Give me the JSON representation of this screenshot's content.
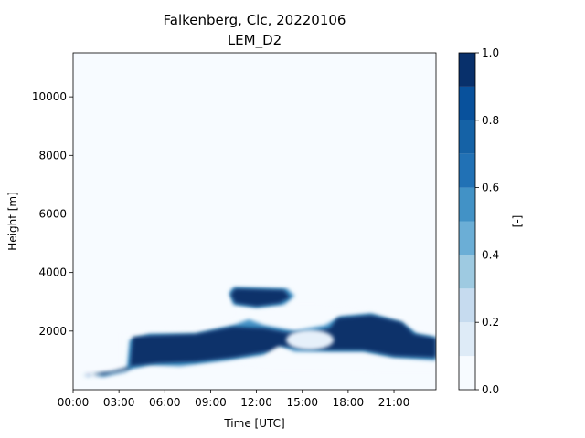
{
  "chart_data": {
    "type": "heatmap",
    "title": "Falkenberg, Clc, 20220106",
    "subtitle": "LEM_D2",
    "xlabel": "Time [UTC]",
    "ylabel": "Height [m]",
    "xlim": [
      0,
      23.75
    ],
    "ylim": [
      0,
      11500
    ],
    "x_ticks": [
      0,
      3,
      6,
      9,
      12,
      15,
      18,
      21
    ],
    "x_tick_labels": [
      "00:00",
      "03:00",
      "06:00",
      "09:00",
      "12:00",
      "15:00",
      "18:00",
      "21:00"
    ],
    "y_ticks": [
      2000,
      4000,
      6000,
      8000,
      10000
    ],
    "y_tick_labels": [
      "2000",
      "4000",
      "6000",
      "8000",
      "10000"
    ],
    "colorbar": {
      "label": "[-]",
      "range": [
        0,
        1
      ],
      "levels": [
        0.0,
        0.1,
        0.2,
        0.3,
        0.4,
        0.5,
        0.6,
        0.7,
        0.8,
        0.9,
        1.0
      ],
      "ticks": [
        0.0,
        0.2,
        0.4,
        0.6,
        0.8,
        1.0
      ],
      "tick_labels": [
        "0.0",
        "0.2",
        "0.4",
        "0.6",
        "0.8",
        "1.0"
      ],
      "colors": [
        "#f7fbff",
        "#deebf7",
        "#c6dbef",
        "#9ecae1",
        "#6baed6",
        "#4292c6",
        "#2171b5",
        "#1562a6",
        "#08519c",
        "#08306b"
      ],
      "colormap": "Blues"
    },
    "series": [
      {
        "level": 0.05,
        "regions": [
          {
            "description_label": "",
            "outline": [
              [
                0.5,
                300
              ],
              [
                2.0,
                350
              ],
              [
                3.0,
                500
              ],
              [
                3.0,
                2000
              ],
              [
                9.0,
                2200
              ],
              [
                10.5,
                2600
              ],
              [
                10.2,
                3200
              ],
              [
                10.5,
                3500
              ],
              [
                14.0,
                3400
              ],
              [
                14.5,
                3000
              ],
              [
                16.0,
                3000
              ],
              [
                18.0,
                2900
              ],
              [
                20.5,
                2700
              ],
              [
                22.5,
                2200
              ],
              [
                23.75,
                2000
              ],
              [
                23.75,
                500
              ],
              [
                20.0,
                500
              ],
              [
                16.0,
                600
              ],
              [
                13.0,
                600
              ],
              [
                10.0,
                800
              ],
              [
                6.0,
                900
              ],
              [
                3.0,
                500
              ],
              [
                0.5,
                500
              ]
            ]
          }
        ]
      },
      {
        "level": 0.55,
        "regions": [
          {
            "outline": [
              [
                0.6,
                500
              ],
              [
                2.0,
                450
              ],
              [
                3.5,
                600
              ],
              [
                3.7,
                1700
              ],
              [
                5.0,
                1900
              ],
              [
                8.0,
                1900
              ],
              [
                10.5,
                2200
              ],
              [
                11.5,
                2400
              ],
              [
                12.5,
                2200
              ],
              [
                14.5,
                2000
              ],
              [
                16.5,
                2200
              ],
              [
                17.5,
                2500
              ],
              [
                19.5,
                2600
              ],
              [
                21.5,
                2300
              ],
              [
                22.5,
                1900
              ],
              [
                23.75,
                1800
              ],
              [
                23.75,
                1000
              ],
              [
                21.0,
                1100
              ],
              [
                19.0,
                1300
              ],
              [
                16.5,
                1300
              ],
              [
                14.5,
                1300
              ],
              [
                13.2,
                1600
              ],
              [
                12.5,
                1200
              ],
              [
                10.0,
                1000
              ],
              [
                7.0,
                800
              ],
              [
                5.0,
                850
              ],
              [
                3.0,
                600
              ],
              [
                1.0,
                450
              ]
            ]
          },
          {
            "outline": [
              [
                10.2,
                3300
              ],
              [
                10.5,
                3500
              ],
              [
                14.0,
                3450
              ],
              [
                14.5,
                3200
              ],
              [
                13.8,
                2900
              ],
              [
                12.0,
                2800
              ],
              [
                10.5,
                2900
              ]
            ]
          }
        ]
      },
      {
        "level": 0.9,
        "regions": [
          {
            "outline": [
              [
                0.8,
                550
              ],
              [
                2.0,
                500
              ],
              [
                3.7,
                700
              ],
              [
                3.9,
                1800
              ],
              [
                5.0,
                1850
              ],
              [
                8.0,
                1900
              ],
              [
                10.5,
                2150
              ],
              [
                12.5,
                2100
              ],
              [
                14.0,
                1950
              ],
              [
                15.5,
                1950
              ],
              [
                16.8,
                2100
              ],
              [
                17.3,
                2450
              ],
              [
                19.5,
                2550
              ],
              [
                21.5,
                2300
              ],
              [
                22.3,
                1900
              ],
              [
                23.75,
                1750
              ],
              [
                23.75,
                1100
              ],
              [
                21.0,
                1150
              ],
              [
                19.0,
                1350
              ],
              [
                16.8,
                1350
              ],
              [
                15.0,
                1400
              ],
              [
                13.5,
                1500
              ],
              [
                12.8,
                1300
              ],
              [
                10.5,
                1100
              ],
              [
                8.0,
                950
              ],
              [
                5.5,
                900
              ],
              [
                3.8,
                800
              ],
              [
                2.5,
                620
              ],
              [
                1.0,
                520
              ]
            ]
          },
          {
            "outline": [
              [
                10.3,
                3250
              ],
              [
                10.6,
                3450
              ],
              [
                13.8,
                3400
              ],
              [
                14.2,
                3150
              ],
              [
                13.5,
                2950
              ],
              [
                12.0,
                2850
              ],
              [
                10.6,
                2950
              ]
            ]
          }
        ]
      }
    ],
    "clear_gap": {
      "center_time": 15.5,
      "center_height": 1700,
      "note": ""
    }
  }
}
